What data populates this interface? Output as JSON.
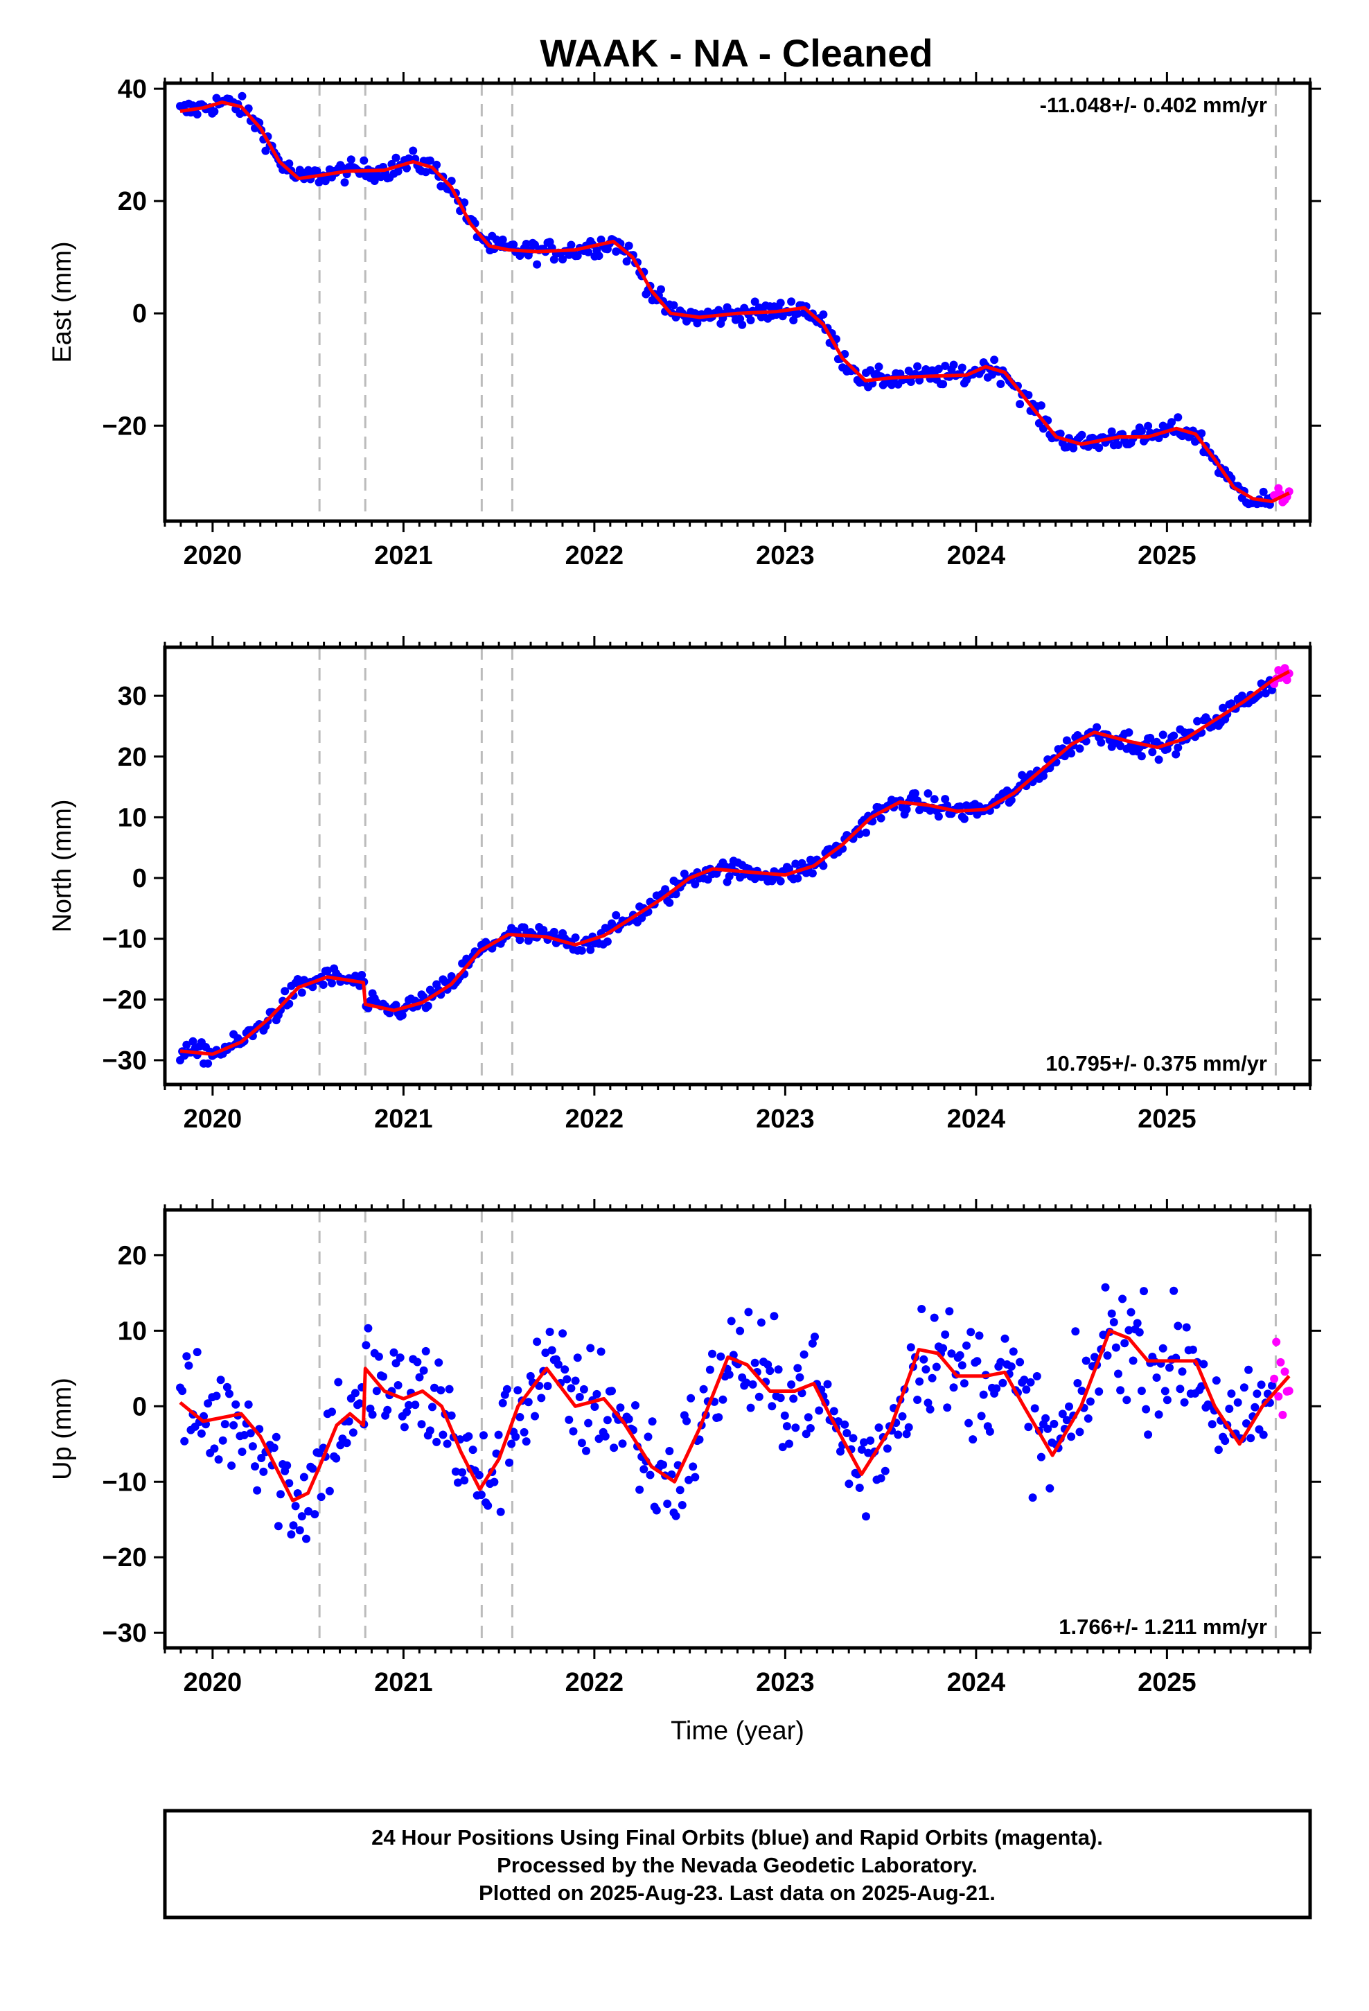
{
  "title": "WAAK  - NA - Cleaned",
  "footer": {
    "line1": "24 Hour Positions Using Final Orbits (blue) and Rapid Orbits (magenta).",
    "line2": "Processed by the Nevada Geodetic Laboratory.",
    "line3": "Plotted on 2025-Aug-23. Last data on 2025-Aug-21."
  },
  "colors": {
    "final_orbits": "#0000ff",
    "rapid_orbits": "#ff00ff",
    "model": "#ff0000",
    "event_lines": "#bbbbbb"
  },
  "chart_data": [
    {
      "type": "scatter",
      "component": "east",
      "ylabel": "East (mm)",
      "xlabel": "",
      "xlim": [
        2019.75,
        2025.75
      ],
      "ylim": [
        -37,
        41
      ],
      "x_ticks": [
        2020,
        2021,
        2022,
        2023,
        2024,
        2025
      ],
      "y_ticks": [
        -20,
        0,
        20,
        40
      ],
      "rate_text": "-11.048+/- 0.402 mm/yr",
      "rate_position": "top-right",
      "event_lines": [
        2020.56,
        2020.8,
        2021.41,
        2021.57,
        2025.57
      ],
      "data_span": [
        2019.83,
        2025.64
      ],
      "rapid_start": 2025.56,
      "noise_mm": 1.3,
      "model_line": [
        [
          2019.83,
          36.0
        ],
        [
          2019.95,
          36.6
        ],
        [
          2020.05,
          37.6
        ],
        [
          2020.15,
          36.8
        ],
        [
          2020.25,
          33.0
        ],
        [
          2020.35,
          27.0
        ],
        [
          2020.45,
          24.0
        ],
        [
          2020.55,
          24.5
        ],
        [
          2020.7,
          25.3
        ],
        [
          2020.9,
          25.5
        ],
        [
          2021.05,
          27.0
        ],
        [
          2021.15,
          26.0
        ],
        [
          2021.25,
          22.5
        ],
        [
          2021.35,
          16.0
        ],
        [
          2021.45,
          12.0
        ],
        [
          2021.55,
          11.3
        ],
        [
          2021.7,
          11.0
        ],
        [
          2021.9,
          11.3
        ],
        [
          2022.1,
          12.8
        ],
        [
          2022.2,
          10.0
        ],
        [
          2022.3,
          4.0
        ],
        [
          2022.4,
          0.0
        ],
        [
          2022.55,
          -0.7
        ],
        [
          2022.75,
          0.0
        ],
        [
          2022.95,
          0.3
        ],
        [
          2023.1,
          1.0
        ],
        [
          2023.2,
          -2.0
        ],
        [
          2023.3,
          -8.0
        ],
        [
          2023.42,
          -12.0
        ],
        [
          2023.55,
          -11.5
        ],
        [
          2023.75,
          -11.2
        ],
        [
          2023.95,
          -11.0
        ],
        [
          2024.05,
          -9.5
        ],
        [
          2024.15,
          -10.5
        ],
        [
          2024.3,
          -17.0
        ],
        [
          2024.42,
          -22.0
        ],
        [
          2024.55,
          -23.3
        ],
        [
          2024.75,
          -22.0
        ],
        [
          2024.9,
          -22.0
        ],
        [
          2025.05,
          -20.5
        ],
        [
          2025.15,
          -21.5
        ],
        [
          2025.25,
          -26.0
        ],
        [
          2025.35,
          -31.0
        ],
        [
          2025.45,
          -33.0
        ],
        [
          2025.55,
          -33.5
        ],
        [
          2025.64,
          -32.0
        ]
      ]
    },
    {
      "type": "scatter",
      "component": "north",
      "ylabel": "North (mm)",
      "xlabel": "",
      "xlim": [
        2019.75,
        2025.75
      ],
      "ylim": [
        -34,
        38
      ],
      "x_ticks": [
        2020,
        2021,
        2022,
        2023,
        2024,
        2025
      ],
      "y_ticks": [
        -30,
        -20,
        -10,
        0,
        10,
        20,
        30
      ],
      "rate_text": "10.795+/- 0.375 mm/yr",
      "rate_position": "bottom-right",
      "event_lines": [
        2020.56,
        2020.8,
        2021.41,
        2021.57,
        2025.57
      ],
      "data_span": [
        2019.83,
        2025.64
      ],
      "rapid_start": 2025.56,
      "noise_mm": 1.2,
      "model_line": [
        [
          2019.83,
          -28.5
        ],
        [
          2020.0,
          -29.0
        ],
        [
          2020.15,
          -27.0
        ],
        [
          2020.3,
          -23.0
        ],
        [
          2020.45,
          -18.0
        ],
        [
          2020.6,
          -16.3
        ],
        [
          2020.79,
          -17.2
        ],
        [
          2020.8,
          -20.8
        ],
        [
          2020.95,
          -21.8
        ],
        [
          2021.1,
          -20.5
        ],
        [
          2021.25,
          -17.5
        ],
        [
          2021.4,
          -12.0
        ],
        [
          2021.55,
          -9.3
        ],
        [
          2021.75,
          -9.7
        ],
        [
          2021.9,
          -11.0
        ],
        [
          2022.05,
          -9.5
        ],
        [
          2022.2,
          -6.5
        ],
        [
          2022.35,
          -3.5
        ],
        [
          2022.5,
          0.0
        ],
        [
          2022.62,
          1.5
        ],
        [
          2022.8,
          1.0
        ],
        [
          2023.0,
          0.5
        ],
        [
          2023.15,
          2.0
        ],
        [
          2023.3,
          5.5
        ],
        [
          2023.45,
          10.0
        ],
        [
          2023.6,
          12.5
        ],
        [
          2023.75,
          12.0
        ],
        [
          2023.9,
          11.0
        ],
        [
          2024.05,
          11.3
        ],
        [
          2024.2,
          14.0
        ],
        [
          2024.35,
          18.0
        ],
        [
          2024.5,
          22.0
        ],
        [
          2024.62,
          24.0
        ],
        [
          2024.8,
          22.5
        ],
        [
          2024.95,
          21.5
        ],
        [
          2025.1,
          23.0
        ],
        [
          2025.25,
          26.0
        ],
        [
          2025.4,
          29.0
        ],
        [
          2025.55,
          32.5
        ],
        [
          2025.64,
          34.0
        ]
      ]
    },
    {
      "type": "scatter",
      "component": "up",
      "ylabel": "Up (mm)",
      "xlabel": "Time (year)",
      "xlim": [
        2019.75,
        2025.75
      ],
      "ylim": [
        -32,
        26
      ],
      "x_ticks": [
        2020,
        2021,
        2022,
        2023,
        2024,
        2025
      ],
      "y_ticks": [
        -30,
        -20,
        -10,
        0,
        10,
        20
      ],
      "rate_text": "1.766+/- 1.211 mm/yr",
      "rate_position": "bottom-right",
      "event_lines": [
        2020.56,
        2020.8,
        2021.41,
        2021.57,
        2025.57
      ],
      "data_span": [
        2019.83,
        2025.64
      ],
      "rapid_start": 2025.56,
      "noise_mm": 5.5,
      "model_line": [
        [
          2019.83,
          0.5
        ],
        [
          2019.95,
          -2.0
        ],
        [
          2020.05,
          -1.5
        ],
        [
          2020.15,
          -1.0
        ],
        [
          2020.25,
          -4.0
        ],
        [
          2020.35,
          -9.0
        ],
        [
          2020.42,
          -12.5
        ],
        [
          2020.5,
          -11.5
        ],
        [
          2020.56,
          -8.0
        ],
        [
          2020.65,
          -2.5
        ],
        [
          2020.72,
          -1.0
        ],
        [
          2020.79,
          -2.5
        ],
        [
          2020.8,
          5.0
        ],
        [
          2020.9,
          2.0
        ],
        [
          2021.0,
          1.0
        ],
        [
          2021.1,
          2.0
        ],
        [
          2021.2,
          0.0
        ],
        [
          2021.3,
          -6.0
        ],
        [
          2021.4,
          -11.0
        ],
        [
          2021.5,
          -7.0
        ],
        [
          2021.6,
          0.0
        ],
        [
          2021.75,
          5.0
        ],
        [
          2021.9,
          0.0
        ],
        [
          2022.05,
          1.0
        ],
        [
          2022.15,
          -2.0
        ],
        [
          2022.3,
          -8.0
        ],
        [
          2022.42,
          -10.0
        ],
        [
          2022.55,
          -3.0
        ],
        [
          2022.7,
          6.5
        ],
        [
          2022.8,
          5.5
        ],
        [
          2022.92,
          2.0
        ],
        [
          2023.05,
          2.0
        ],
        [
          2023.15,
          3.0
        ],
        [
          2023.25,
          -2.0
        ],
        [
          2023.4,
          -9.0
        ],
        [
          2023.55,
          -3.0
        ],
        [
          2023.7,
          7.5
        ],
        [
          2023.8,
          7.0
        ],
        [
          2023.9,
          4.0
        ],
        [
          2024.05,
          4.0
        ],
        [
          2024.15,
          4.5
        ],
        [
          2024.25,
          0.0
        ],
        [
          2024.4,
          -6.5
        ],
        [
          2024.55,
          0.0
        ],
        [
          2024.7,
          10.0
        ],
        [
          2024.8,
          9.0
        ],
        [
          2024.9,
          6.0
        ],
        [
          2025.05,
          6.0
        ],
        [
          2025.15,
          6.0
        ],
        [
          2025.25,
          0.0
        ],
        [
          2025.38,
          -5.0
        ],
        [
          2025.5,
          0.0
        ],
        [
          2025.64,
          4.0
        ]
      ]
    }
  ]
}
